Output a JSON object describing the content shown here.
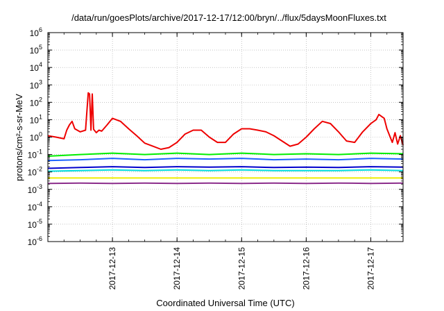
{
  "chart_data": {
    "type": "line",
    "title": "/data/run/goesPlots/archive/2017-12-17/12:00/bryn/../flux/5daysMoonFluxes.txt",
    "xlabel": "Coordinated Universal Time (UTC)",
    "ylabel": "protons/cm²-s-sr-MeV",
    "y_scale": "log",
    "ylim": [
      1e-06,
      1000000.0
    ],
    "y_ticks": [
      {
        "exp": -6,
        "label": "10",
        "sup": "-6"
      },
      {
        "exp": -5,
        "label": "10",
        "sup": "-5"
      },
      {
        "exp": -4,
        "label": "10",
        "sup": "-4"
      },
      {
        "exp": -3,
        "label": "10",
        "sup": "-3"
      },
      {
        "exp": -2,
        "label": "10",
        "sup": "-2"
      },
      {
        "exp": -1,
        "label": "10",
        "sup": "-1"
      },
      {
        "exp": 0,
        "label": "10",
        "sup": "0"
      },
      {
        "exp": 1,
        "label": "10",
        "sup": "1"
      },
      {
        "exp": 2,
        "label": "10",
        "sup": "2"
      },
      {
        "exp": 3,
        "label": "10",
        "sup": "3"
      },
      {
        "exp": 4,
        "label": "10",
        "sup": "4"
      },
      {
        "exp": 5,
        "label": "10",
        "sup": "5"
      },
      {
        "exp": 6,
        "label": "10",
        "sup": "6"
      }
    ],
    "xlim": [
      "2017-12-12 00:00",
      "2017-12-17 12:00"
    ],
    "x_ticks": [
      "2017-12-13",
      "2017-12-14",
      "2017-12-15",
      "2017-12-16",
      "2017-12-17"
    ],
    "grid": true,
    "legend": "none",
    "series": [
      {
        "color": "#ee0000",
        "x": [
          "2017-12-12 00:00",
          "2017-12-12 03:00",
          "2017-12-12 06:00",
          "2017-12-12 07:00",
          "2017-12-12 08:00",
          "2017-12-12 09:00",
          "2017-12-12 10:00",
          "2017-12-12 12:00",
          "2017-12-12 14:00",
          "2017-12-12 15:00",
          "2017-12-12 15:30",
          "2017-12-12 16:00",
          "2017-12-12 16:30",
          "2017-12-12 17:00",
          "2017-12-12 18:00",
          "2017-12-12 19:00",
          "2017-12-12 20:00",
          "2017-12-12 22:00",
          "2017-12-13 00:00",
          "2017-12-13 03:00",
          "2017-12-13 06:00",
          "2017-12-13 09:00",
          "2017-12-13 12:00",
          "2017-12-13 15:00",
          "2017-12-13 18:00",
          "2017-12-13 21:00",
          "2017-12-14 00:00",
          "2017-12-14 03:00",
          "2017-12-14 06:00",
          "2017-12-14 09:00",
          "2017-12-14 12:00",
          "2017-12-14 15:00",
          "2017-12-14 18:00",
          "2017-12-14 21:00",
          "2017-12-15 00:00",
          "2017-12-15 03:00",
          "2017-12-15 06:00",
          "2017-12-15 09:00",
          "2017-12-15 12:00",
          "2017-12-15 15:00",
          "2017-12-15 18:00",
          "2017-12-15 21:00",
          "2017-12-16 00:00",
          "2017-12-16 03:00",
          "2017-12-16 06:00",
          "2017-12-16 09:00",
          "2017-12-16 12:00",
          "2017-12-16 15:00",
          "2017-12-16 18:00",
          "2017-12-16 21:00",
          "2017-12-17 00:00",
          "2017-12-17 02:00",
          "2017-12-17 03:00",
          "2017-12-17 05:00",
          "2017-12-17 06:00",
          "2017-12-17 08:00",
          "2017-12-17 09:00",
          "2017-12-17 10:00",
          "2017-12-17 11:00",
          "2017-12-17 12:00"
        ],
        "y": [
          1.2,
          1.0,
          0.8,
          2.5,
          5,
          8,
          3,
          2,
          2.5,
          350,
          300,
          2.5,
          300,
          2.8,
          1.8,
          2.5,
          2.2,
          5,
          12,
          8,
          3,
          1.2,
          0.45,
          0.3,
          0.2,
          0.25,
          0.5,
          1.5,
          2.5,
          2.5,
          1.0,
          0.5,
          0.5,
          1.5,
          3,
          3,
          2.5,
          2,
          1.2,
          0.6,
          0.3,
          0.4,
          1.0,
          3,
          8,
          6,
          2,
          0.6,
          0.5,
          2,
          6,
          10,
          20,
          12,
          3,
          0.5,
          1.8,
          0.4,
          1.2,
          0.35
        ]
      },
      {
        "color": "#00ee00",
        "x": [
          "2017-12-12 00:00",
          "2017-12-12 12:00",
          "2017-12-13 00:00",
          "2017-12-13 12:00",
          "2017-12-14 00:00",
          "2017-12-14 12:00",
          "2017-12-15 00:00",
          "2017-12-15 12:00",
          "2017-12-16 00:00",
          "2017-12-16 12:00",
          "2017-12-17 00:00",
          "2017-12-17 12:00"
        ],
        "y": [
          0.08,
          0.1,
          0.12,
          0.1,
          0.12,
          0.1,
          0.12,
          0.1,
          0.11,
          0.1,
          0.12,
          0.11
        ]
      },
      {
        "color": "#1e64ff",
        "x": [
          "2017-12-12 00:00",
          "2017-12-12 12:00",
          "2017-12-13 00:00",
          "2017-12-13 12:00",
          "2017-12-14 00:00",
          "2017-12-14 12:00",
          "2017-12-15 00:00",
          "2017-12-15 12:00",
          "2017-12-16 00:00",
          "2017-12-16 12:00",
          "2017-12-17 00:00",
          "2017-12-17 12:00"
        ],
        "y": [
          0.045,
          0.05,
          0.06,
          0.05,
          0.06,
          0.055,
          0.06,
          0.05,
          0.055,
          0.05,
          0.06,
          0.055
        ]
      },
      {
        "color": "#00dddd",
        "x": [
          "2017-12-12 00:00",
          "2017-12-12 12:00",
          "2017-12-13 00:00",
          "2017-12-13 12:00",
          "2017-12-14 00:00",
          "2017-12-14 12:00",
          "2017-12-15 00:00",
          "2017-12-15 12:00",
          "2017-12-16 00:00",
          "2017-12-16 12:00",
          "2017-12-17 00:00",
          "2017-12-17 12:00"
        ],
        "y": [
          0.011,
          0.012,
          0.013,
          0.012,
          0.013,
          0.012,
          0.013,
          0.012,
          0.012,
          0.012,
          0.013,
          0.012
        ]
      },
      {
        "color": "#0000cc",
        "x": [
          "2017-12-12 00:00",
          "2017-12-12 12:00",
          "2017-12-13 00:00",
          "2017-12-13 12:00",
          "2017-12-14 00:00",
          "2017-12-14 12:00",
          "2017-12-15 00:00",
          "2017-12-15 12:00",
          "2017-12-16 00:00",
          "2017-12-16 12:00",
          "2017-12-17 00:00",
          "2017-12-17 12:00"
        ],
        "y": [
          0.016,
          0.018,
          0.02,
          0.018,
          0.02,
          0.019,
          0.02,
          0.018,
          0.019,
          0.018,
          0.02,
          0.019
        ]
      },
      {
        "color": "#eeee00",
        "x": [
          "2017-12-12 00:00",
          "2017-12-13 00:00",
          "2017-12-14 00:00",
          "2017-12-15 00:00",
          "2017-12-16 00:00",
          "2017-12-17 00:00",
          "2017-12-17 12:00"
        ],
        "y": [
          0.0045,
          0.0045,
          0.0045,
          0.0045,
          0.0045,
          0.0045,
          0.0045
        ]
      },
      {
        "color": "#8b2c8b",
        "x": [
          "2017-12-12 00:00",
          "2017-12-12 12:00",
          "2017-12-13 00:00",
          "2017-12-13 12:00",
          "2017-12-14 00:00",
          "2017-12-14 12:00",
          "2017-12-15 00:00",
          "2017-12-15 12:00",
          "2017-12-16 00:00",
          "2017-12-16 12:00",
          "2017-12-17 00:00",
          "2017-12-17 12:00"
        ],
        "y": [
          0.0022,
          0.0023,
          0.0022,
          0.0023,
          0.0022,
          0.0023,
          0.0022,
          0.0023,
          0.0022,
          0.0023,
          0.0022,
          0.0023
        ]
      }
    ]
  }
}
